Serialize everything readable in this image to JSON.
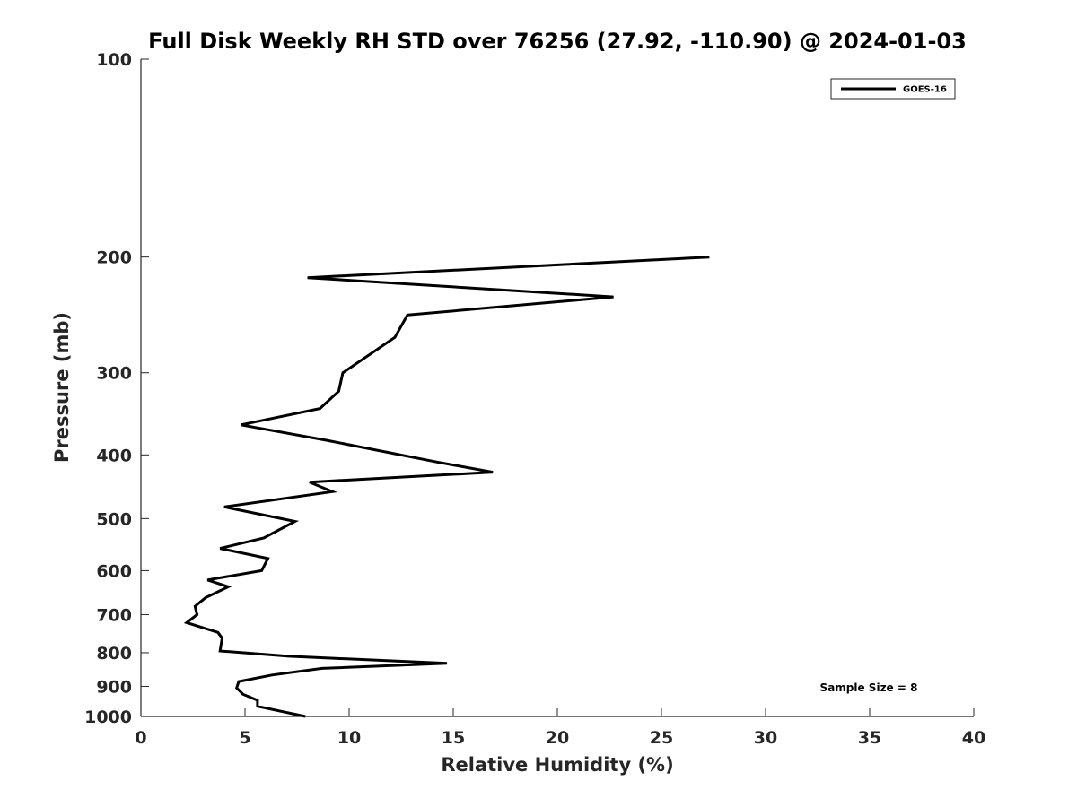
{
  "chart_data": {
    "type": "line",
    "title": "Full Disk Weekly RH STD over 76256 (27.92, -110.90) @ 2024-01-03",
    "xlabel": "Relative Humidity (%)",
    "ylabel": "Pressure (mb)",
    "xlim": [
      0,
      40
    ],
    "ylim": [
      100,
      1000
    ],
    "y_scale": "log",
    "y_reversed": true,
    "x_ticks": [
      "0",
      "5",
      "10",
      "15",
      "20",
      "25",
      "30",
      "35",
      "40"
    ],
    "y_ticks": [
      "100",
      "200",
      "300",
      "400",
      "500",
      "600",
      "700",
      "800",
      "900",
      "1000"
    ],
    "grid": false,
    "legend_position": "top-right",
    "series": [
      {
        "name": "GOES-16",
        "color": "#000000",
        "points": [
          [
            27.3,
            200
          ],
          [
            8.0,
            215
          ],
          [
            22.7,
            230
          ],
          [
            12.8,
            245
          ],
          [
            12.2,
            265
          ],
          [
            9.7,
            300
          ],
          [
            9.5,
            320
          ],
          [
            8.6,
            340
          ],
          [
            4.8,
            360
          ],
          [
            8.9,
            380
          ],
          [
            14.2,
            410
          ],
          [
            16.9,
            425
          ],
          [
            8.1,
            440
          ],
          [
            9.2,
            455
          ],
          [
            4.0,
            480
          ],
          [
            7.4,
            505
          ],
          [
            5.9,
            535
          ],
          [
            3.8,
            555
          ],
          [
            6.1,
            575
          ],
          [
            5.8,
            600
          ],
          [
            3.2,
            620
          ],
          [
            4.2,
            635
          ],
          [
            3.1,
            660
          ],
          [
            2.6,
            680
          ],
          [
            2.7,
            700
          ],
          [
            2.2,
            720
          ],
          [
            3.7,
            745
          ],
          [
            3.9,
            760
          ],
          [
            3.8,
            795
          ],
          [
            7.1,
            810
          ],
          [
            14.7,
            830
          ],
          [
            8.7,
            845
          ],
          [
            6.3,
            865
          ],
          [
            4.7,
            885
          ],
          [
            4.6,
            905
          ],
          [
            4.9,
            925
          ],
          [
            5.6,
            945
          ],
          [
            5.6,
            965
          ],
          [
            7.9,
            1000
          ]
        ]
      }
    ],
    "annotations": [
      "Sample Size = 8"
    ]
  }
}
